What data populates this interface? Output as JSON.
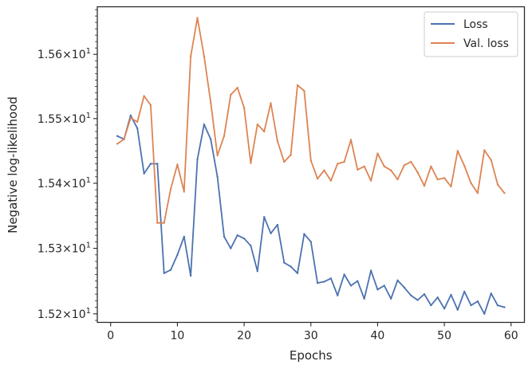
{
  "chart_data": {
    "type": "line",
    "xlabel": "Epochs",
    "ylabel": "Negative log-likelihood",
    "xlim": [
      -2,
      62
    ],
    "ylim": [
      15.187,
      15.6745
    ],
    "y_scale": "log",
    "grid": false,
    "legend_position": "top-right",
    "x_ticks": [
      0,
      10,
      20,
      30,
      40,
      50,
      60
    ],
    "x_tick_labels": [
      "0",
      "10",
      "20",
      "30",
      "40",
      "50",
      "60"
    ],
    "y_ticks": [
      15.2,
      15.3,
      15.4,
      15.5,
      15.6
    ],
    "y_tick_labels": [
      {
        "base": "1.52",
        "times": "×",
        "mant": "10",
        "exp": "1"
      },
      {
        "base": "1.53",
        "times": "×",
        "mant": "10",
        "exp": "1"
      },
      {
        "base": "1.54",
        "times": "×",
        "mant": "10",
        "exp": "1"
      },
      {
        "base": "1.55",
        "times": "×",
        "mant": "10",
        "exp": "1"
      },
      {
        "base": "1.56",
        "times": "×",
        "mant": "10",
        "exp": "1"
      }
    ],
    "x": [
      1,
      2,
      3,
      4,
      5,
      6,
      7,
      8,
      9,
      10,
      11,
      12,
      13,
      14,
      15,
      16,
      17,
      18,
      19,
      20,
      21,
      22,
      23,
      24,
      25,
      26,
      27,
      28,
      29,
      30,
      31,
      32,
      33,
      34,
      35,
      36,
      37,
      38,
      39,
      40,
      41,
      42,
      43,
      44,
      45,
      46,
      47,
      48,
      49,
      50,
      51,
      52,
      53,
      54,
      55,
      56,
      57,
      58,
      59
    ],
    "series": [
      {
        "name": "Loss",
        "color": "#4c72b0",
        "values": [
          15.473,
          15.468,
          15.505,
          15.485,
          15.415,
          15.43,
          15.43,
          15.262,
          15.267,
          15.29,
          15.318,
          15.258,
          15.437,
          15.491,
          15.468,
          15.41,
          15.318,
          15.3,
          15.32,
          15.315,
          15.304,
          15.265,
          15.348,
          15.323,
          15.336,
          15.278,
          15.272,
          15.262,
          15.322,
          15.31,
          15.247,
          15.249,
          15.254,
          15.228,
          15.26,
          15.243,
          15.25,
          15.223,
          15.266,
          15.237,
          15.243,
          15.223,
          15.251,
          15.24,
          15.228,
          15.221,
          15.23,
          15.213,
          15.225,
          15.208,
          15.229,
          15.206,
          15.234,
          15.213,
          15.219,
          15.2,
          15.231,
          15.213,
          15.21
        ]
      },
      {
        "name": "Val. loss",
        "color": "#dd8452",
        "values": [
          15.461,
          15.468,
          15.501,
          15.495,
          15.535,
          15.521,
          15.339,
          15.339,
          15.391,
          15.429,
          15.387,
          15.597,
          15.657,
          15.597,
          15.525,
          15.443,
          15.473,
          15.537,
          15.548,
          15.517,
          15.431,
          15.491,
          15.48,
          15.524,
          15.465,
          15.433,
          15.444,
          15.552,
          15.543,
          15.435,
          15.407,
          15.42,
          15.404,
          15.43,
          15.433,
          15.467,
          15.421,
          15.426,
          15.404,
          15.446,
          15.426,
          15.42,
          15.406,
          15.428,
          15.433,
          15.417,
          15.396,
          15.426,
          15.406,
          15.408,
          15.395,
          15.45,
          15.427,
          15.4,
          15.385,
          15.451,
          15.436,
          15.398,
          15.385
        ]
      }
    ]
  }
}
